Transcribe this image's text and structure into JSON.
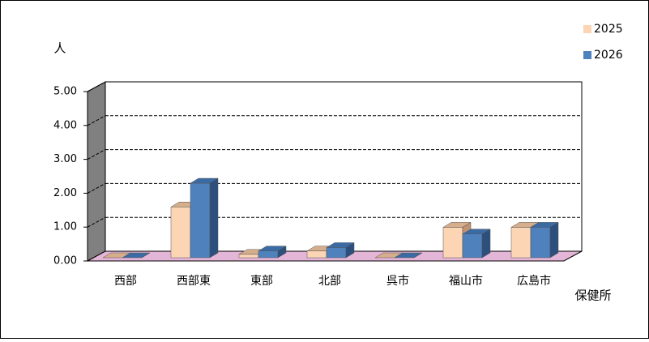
{
  "chart_data": {
    "type": "bar3d",
    "y_label": "人",
    "x_label": "保健所",
    "categories": [
      "西部",
      "西部東",
      "東部",
      "北部",
      "呉市",
      "福山市",
      "広島市"
    ],
    "series": [
      {
        "name": "2025",
        "color": "#FCD5B5",
        "values": [
          0,
          1.5,
          0.1,
          0.2,
          0,
          0.9,
          0.9
        ]
      },
      {
        "name": "2026",
        "color": "#4F81BD",
        "values": [
          0,
          2.2,
          0.2,
          0.3,
          0,
          0.7,
          0.9
        ]
      }
    ],
    "ylim": [
      0,
      5
    ],
    "yticks": [
      {
        "value": 0,
        "label": "0.00"
      },
      {
        "value": 1,
        "label": "1.00"
      },
      {
        "value": 2,
        "label": "2.00"
      },
      {
        "value": 3,
        "label": "3.00"
      },
      {
        "value": 4,
        "label": "4.00"
      },
      {
        "value": 5,
        "label": "5.00"
      }
    ],
    "grid": true,
    "legend": "top-right"
  }
}
